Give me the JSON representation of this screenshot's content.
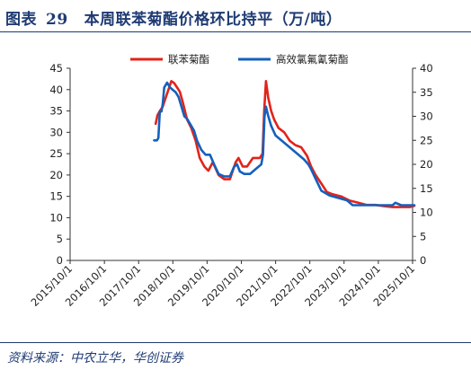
{
  "header": {
    "label": "图表",
    "number": "29",
    "title": "本周联苯菊酯价格环比持平（万/吨）"
  },
  "footer": {
    "source": "资料来源：中农立华，华创证券"
  },
  "colors": {
    "brand": "#1f3b73",
    "series_1": "#e2231a",
    "series_2": "#1560bd"
  },
  "chart_data": {
    "type": "line",
    "x_axis": {
      "kind": "date",
      "range": [
        "2015-10-01",
        "2025-10-01"
      ],
      "tick_labels": [
        "2015/10/1",
        "2016/10/1",
        "2017/10/1",
        "2018/10/1",
        "2019/10/1",
        "2020/10/1",
        "2021/10/1",
        "2022/10/1",
        "2023/10/1",
        "2024/10/1",
        "2025/10/1"
      ]
    },
    "y_axis_left": {
      "range": [
        0,
        45
      ],
      "ticks": [
        0,
        5,
        10,
        15,
        20,
        25,
        30,
        35,
        40,
        45
      ]
    },
    "y_axis_right": {
      "range": [
        0,
        40
      ],
      "ticks": [
        0,
        5,
        10,
        15,
        20,
        25,
        30,
        35,
        40
      ]
    },
    "legend": {
      "position": "top-center"
    },
    "grid": false,
    "series": [
      {
        "name": "联苯菊酯",
        "axis": "left",
        "color": "#e2231a",
        "points": [
          [
            "2018-04-01",
            32
          ],
          [
            "2018-04-20",
            34
          ],
          [
            "2018-05-15",
            35
          ],
          [
            "2018-06-15",
            36
          ],
          [
            "2018-07-15",
            38
          ],
          [
            "2018-08-15",
            40
          ],
          [
            "2018-09-15",
            42
          ],
          [
            "2018-10-15",
            41.5
          ],
          [
            "2018-11-15",
            40.5
          ],
          [
            "2018-12-15",
            39.5
          ],
          [
            "2019-01-15",
            37
          ],
          [
            "2019-03-01",
            33
          ],
          [
            "2019-04-15",
            31
          ],
          [
            "2019-06-01",
            28
          ],
          [
            "2019-07-15",
            24
          ],
          [
            "2019-09-01",
            22
          ],
          [
            "2019-10-15",
            21
          ],
          [
            "2019-12-01",
            23
          ],
          [
            "2020-02-01",
            20
          ],
          [
            "2020-04-01",
            19
          ],
          [
            "2020-06-01",
            19
          ],
          [
            "2020-08-01",
            23
          ],
          [
            "2020-09-01",
            24
          ],
          [
            "2020-10-15",
            22
          ],
          [
            "2020-12-01",
            22
          ],
          [
            "2021-02-01",
            24
          ],
          [
            "2021-04-15",
            24
          ],
          [
            "2021-05-15",
            25
          ],
          [
            "2021-06-01",
            35
          ],
          [
            "2021-06-20",
            42
          ],
          [
            "2021-07-15",
            38
          ],
          [
            "2021-08-15",
            35
          ],
          [
            "2021-09-15",
            33
          ],
          [
            "2021-11-01",
            31
          ],
          [
            "2022-01-01",
            30
          ],
          [
            "2022-03-01",
            28
          ],
          [
            "2022-05-01",
            27
          ],
          [
            "2022-07-01",
            26.5
          ],
          [
            "2022-09-01",
            24.5
          ],
          [
            "2022-10-15",
            22
          ],
          [
            "2022-12-01",
            20
          ],
          [
            "2023-02-01",
            18
          ],
          [
            "2023-04-01",
            16
          ],
          [
            "2023-06-01",
            15.5
          ],
          [
            "2023-09-01",
            15
          ],
          [
            "2023-12-01",
            14
          ],
          [
            "2024-03-01",
            13.5
          ],
          [
            "2024-06-01",
            13
          ],
          [
            "2024-09-01",
            13
          ],
          [
            "2024-12-01",
            12.7
          ],
          [
            "2025-03-01",
            12.5
          ],
          [
            "2025-06-01",
            12.5
          ],
          [
            "2025-09-01",
            12.5
          ],
          [
            "2025-10-20",
            12.8
          ]
        ]
      },
      {
        "name": "高效氯氟氰菊酯",
        "axis": "right",
        "color": "#1560bd",
        "points": [
          [
            "2018-03-15",
            25
          ],
          [
            "2018-04-15",
            25
          ],
          [
            "2018-04-30",
            25.5
          ],
          [
            "2018-05-15",
            31
          ],
          [
            "2018-06-01",
            31
          ],
          [
            "2018-06-15",
            32.5
          ],
          [
            "2018-07-01",
            36
          ],
          [
            "2018-08-01",
            37
          ],
          [
            "2018-09-01",
            36
          ],
          [
            "2018-10-01",
            35.5
          ],
          [
            "2018-11-01",
            35
          ],
          [
            "2018-12-01",
            34
          ],
          [
            "2019-01-01",
            32
          ],
          [
            "2019-02-01",
            30
          ],
          [
            "2019-03-01",
            29.5
          ],
          [
            "2019-04-15",
            28
          ],
          [
            "2019-05-15",
            27
          ],
          [
            "2019-06-15",
            25
          ],
          [
            "2019-08-01",
            23
          ],
          [
            "2019-09-15",
            22
          ],
          [
            "2019-11-01",
            22
          ],
          [
            "2019-12-15",
            20
          ],
          [
            "2020-02-01",
            18
          ],
          [
            "2020-04-01",
            17.5
          ],
          [
            "2020-06-01",
            17.5
          ],
          [
            "2020-07-15",
            19.5
          ],
          [
            "2020-08-15",
            20
          ],
          [
            "2020-09-15",
            18.5
          ],
          [
            "2020-11-01",
            18
          ],
          [
            "2021-01-01",
            18
          ],
          [
            "2021-03-01",
            19
          ],
          [
            "2021-05-01",
            20
          ],
          [
            "2021-05-20",
            22
          ],
          [
            "2021-06-05",
            30
          ],
          [
            "2021-06-20",
            32
          ],
          [
            "2021-07-15",
            30
          ],
          [
            "2021-08-15",
            28
          ],
          [
            "2021-10-01",
            26
          ],
          [
            "2021-12-01",
            25
          ],
          [
            "2022-02-01",
            24
          ],
          [
            "2022-04-01",
            23
          ],
          [
            "2022-06-01",
            22
          ],
          [
            "2022-08-01",
            21
          ],
          [
            "2022-09-15",
            20
          ],
          [
            "2022-10-15",
            19
          ],
          [
            "2022-12-01",
            17
          ],
          [
            "2023-02-01",
            14.5
          ],
          [
            "2023-05-01",
            13.5
          ],
          [
            "2023-08-01",
            13
          ],
          [
            "2023-11-01",
            12.5
          ],
          [
            "2024-01-01",
            11.5
          ],
          [
            "2024-06-01",
            11.5
          ],
          [
            "2024-12-01",
            11.5
          ],
          [
            "2025-03-01",
            11.5
          ],
          [
            "2025-04-01",
            12
          ],
          [
            "2025-06-01",
            11.5
          ],
          [
            "2025-10-20",
            11.5
          ]
        ]
      }
    ]
  }
}
